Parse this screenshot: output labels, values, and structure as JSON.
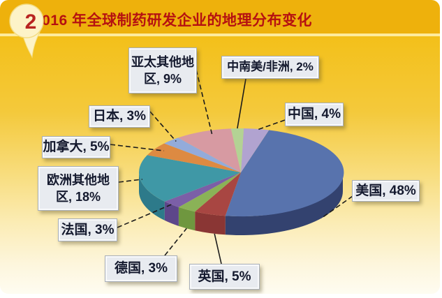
{
  "badge": {
    "number": "2"
  },
  "header": {
    "title": "2016 年全球制药研发企业的地理分布变化"
  },
  "chart_data": {
    "type": "pie",
    "style": "3d",
    "title": "2016 年全球制药研发企业的地理分布变化",
    "unit": "percent",
    "rotation_start_deg": 16,
    "legend_position": "none",
    "slices": [
      {
        "id": "usa",
        "label": "美国",
        "value": 48,
        "display": [
          "美国, 48%"
        ],
        "color": "#5873ad",
        "side_color": "#33426f"
      },
      {
        "id": "uk",
        "label": "英国",
        "value": 5,
        "display": [
          "英国, 5%"
        ],
        "color": "#a84642",
        "side_color": "#8a3634"
      },
      {
        "id": "germany",
        "label": "德国",
        "value": 3,
        "display": [
          "德国, 3%"
        ],
        "color": "#8ab257",
        "side_color": "#6f973f"
      },
      {
        "id": "france",
        "label": "法国",
        "value": 3,
        "display": [
          "法国, 3%"
        ],
        "color": "#7b5fa7",
        "side_color": "#5d468a"
      },
      {
        "id": "europe-other",
        "label": "欧洲其他地区",
        "value": 18,
        "display": [
          "欧洲其他地",
          "区, 18%"
        ],
        "color": "#3f98a6",
        "side_color": "#2d7a8a"
      },
      {
        "id": "canada",
        "label": "加拿大",
        "value": 5,
        "display": [
          "加拿大, 5%"
        ],
        "color": "#dd8a42",
        "side_color": "#b96f2e"
      },
      {
        "id": "japan",
        "label": "日本",
        "value": 3,
        "display": [
          "日本, 3%"
        ],
        "color": "#93abda",
        "side_color": "#7289bd"
      },
      {
        "id": "asia-pacific-other",
        "label": "亚太其他地区",
        "value": 9,
        "display": [
          "亚太其他地",
          "区, 9%"
        ],
        "color": "#d79aa2",
        "side_color": "#b57a82"
      },
      {
        "id": "cs-america-africa",
        "label": "中南美/非洲",
        "value": 2,
        "display": [
          "中南美/非洲, 2%"
        ],
        "color": "#b3d294",
        "side_color": "#93b273"
      },
      {
        "id": "china",
        "label": "中国",
        "value": 4,
        "display": [
          "中国, 4%"
        ],
        "color": "#b1a3d0",
        "side_color": "#9183b2"
      }
    ],
    "colors": {
      "background_top": "#f0b80f",
      "background_bottom": "#fefcf2",
      "title_color": "#b51111",
      "label_box_fill": "#e8ebf0",
      "label_text": "#14192e",
      "leader_line": "#1b1b1b",
      "badge_fill": "#fdf3c8",
      "badge_number_color": "#b82420"
    }
  }
}
